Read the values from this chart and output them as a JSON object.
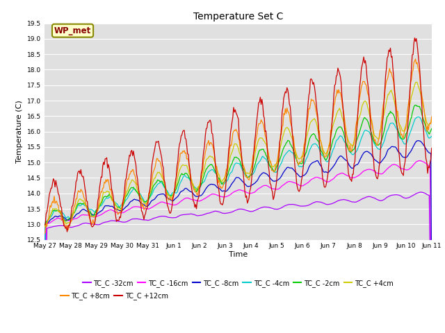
{
  "title": "Temperature Set C",
  "xlabel": "Time",
  "ylabel": "Temperature (C)",
  "ylim": [
    12.5,
    19.5
  ],
  "series_labels": [
    "TC_C -32cm",
    "TC_C -16cm",
    "TC_C -8cm",
    "TC_C -4cm",
    "TC_C -2cm",
    "TC_C +4cm",
    "TC_C +8cm",
    "TC_C +12cm"
  ],
  "series_colors": [
    "#aa00ff",
    "#ff00ff",
    "#0000cc",
    "#00cccc",
    "#00cc00",
    "#cccc00",
    "#ff8800",
    "#cc0000"
  ],
  "annotation_label": "WP_met",
  "annotation_color": "#880000",
  "annotation_bg": "#ffffcc",
  "annotation_border": "#888800",
  "x_tick_labels": [
    "May 27",
    "May 28",
    "May 29",
    "May 30",
    "May 31",
    "Jun 1",
    "Jun 2",
    "Jun 3",
    "Jun 4",
    "Jun 5",
    "Jun 6",
    "Jun 7",
    "Jun 8",
    "Jun 9",
    "Jun 10",
    "Jun 11"
  ],
  "num_points": 480,
  "num_days": 15,
  "bg_color": "#e0e0e0",
  "grid_color": "#ffffff"
}
